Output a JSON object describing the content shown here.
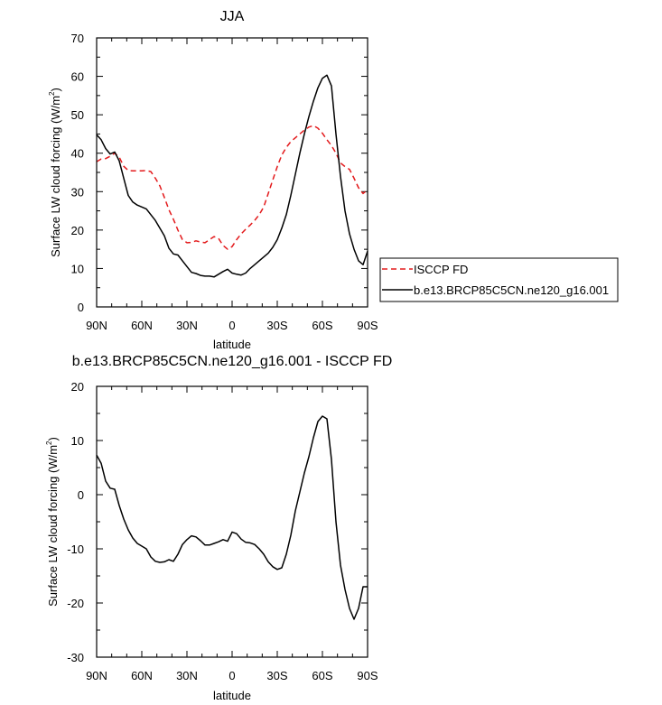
{
  "chart_data": [
    {
      "type": "line",
      "title": "JJA",
      "xlabel": "latitude",
      "ylabel": "Surface LW cloud forcing (W/m²)",
      "ylabel_main": "Surface LW cloud forcing (W/m",
      "ylabel_sup": "2",
      "ylabel_end": ")",
      "xlim": [
        -90,
        90
      ],
      "ylim": [
        0,
        70
      ],
      "xticks": [
        -90,
        -60,
        -30,
        0,
        30,
        60,
        90
      ],
      "xtick_labels": [
        "90N",
        "60N",
        "30N",
        "0",
        "30S",
        "60S",
        "90S"
      ],
      "yticks": [
        0,
        10,
        20,
        30,
        40,
        50,
        60,
        70
      ],
      "ytick_labels": [
        "0",
        "10",
        "20",
        "30",
        "40",
        "50",
        "60",
        "70"
      ],
      "grid": false,
      "legend_position": "right",
      "series": [
        {
          "name": "ISCCP FD",
          "color": "#e31a1c",
          "dash": "dashed",
          "x": [
            -90,
            -87,
            -84,
            -81,
            -78,
            -75,
            -72,
            -69,
            -66,
            -63,
            -60,
            -57,
            -54,
            -51,
            -48,
            -45,
            -42,
            -39,
            -36,
            -33,
            -30,
            -27,
            -24,
            -21,
            -18,
            -15,
            -12,
            -9,
            -6,
            -3,
            0,
            3,
            6,
            9,
            12,
            15,
            18,
            21,
            24,
            27,
            30,
            33,
            36,
            39,
            42,
            45,
            48,
            51,
            54,
            57,
            60,
            63,
            66,
            69,
            72,
            75,
            78,
            81,
            84,
            87,
            90
          ],
          "y": [
            37.8,
            38.5,
            38.6,
            39.2,
            40.0,
            39.0,
            36.6,
            35.5,
            35.4,
            35.4,
            35.4,
            35.5,
            35.2,
            33.5,
            31.5,
            28.5,
            25.3,
            22.8,
            20.0,
            17.5,
            16.7,
            16.8,
            17.2,
            16.9,
            16.7,
            17.5,
            18.3,
            17.8,
            16.0,
            15.0,
            15.7,
            17.5,
            19.0,
            20.2,
            21.3,
            22.5,
            24.0,
            26.0,
            29.5,
            33.0,
            36.5,
            39.5,
            41.5,
            43.0,
            44.0,
            45.0,
            46.0,
            46.8,
            47.2,
            46.5,
            45.2,
            43.5,
            42.0,
            40.0,
            37.5,
            36.5,
            35.8,
            33.5,
            31.0,
            29.5,
            30.5
          ]
        },
        {
          "name": "b.e13.BRCP85C5CN.ne120_g16.001",
          "color": "#000000",
          "dash": "solid",
          "x": [
            -90,
            -87,
            -84,
            -81,
            -78,
            -75,
            -72,
            -69,
            -66,
            -63,
            -60,
            -57,
            -54,
            -51,
            -48,
            -45,
            -42,
            -39,
            -36,
            -33,
            -30,
            -27,
            -24,
            -21,
            -18,
            -15,
            -12,
            -9,
            -6,
            -3,
            0,
            3,
            6,
            9,
            12,
            15,
            18,
            21,
            24,
            27,
            30,
            33,
            36,
            39,
            42,
            45,
            48,
            51,
            54,
            57,
            60,
            63,
            66,
            69,
            72,
            75,
            78,
            81,
            84,
            87,
            90
          ],
          "y": [
            44.8,
            43.5,
            41.2,
            39.8,
            40.3,
            38.0,
            33.5,
            29.0,
            27.3,
            26.5,
            26.0,
            25.5,
            24.0,
            22.5,
            20.5,
            18.5,
            15.3,
            13.8,
            13.5,
            12.0,
            10.5,
            9.0,
            8.7,
            8.2,
            8.0,
            8.0,
            7.8,
            8.5,
            9.2,
            9.8,
            8.8,
            8.5,
            8.3,
            8.8,
            10.0,
            11.0,
            12.0,
            13.0,
            14.0,
            15.5,
            17.5,
            20.5,
            24.0,
            29.0,
            34.5,
            40.0,
            45.0,
            49.5,
            53.5,
            57.0,
            59.5,
            60.3,
            57.5,
            45.0,
            34.0,
            25.0,
            19.0,
            15.0,
            12.0,
            11.0,
            14.5
          ]
        }
      ]
    },
    {
      "type": "line",
      "title": "b.e13.BRCP85C5CN.ne120_g16.001 - ISCCP FD",
      "xlabel": "latitude",
      "ylabel": "Surface LW cloud forcing (W/m²)",
      "ylabel_main": "Surface LW cloud forcing (W/m",
      "ylabel_sup": "2",
      "ylabel_end": ")",
      "xlim": [
        -90,
        90
      ],
      "ylim": [
        -30,
        20
      ],
      "xticks": [
        -90,
        -60,
        -30,
        0,
        30,
        60,
        90
      ],
      "xtick_labels": [
        "90N",
        "60N",
        "30N",
        "0",
        "30S",
        "60S",
        "90S"
      ],
      "yticks": [
        -30,
        -20,
        -10,
        0,
        10,
        20
      ],
      "ytick_labels": [
        "-30",
        "-20",
        "-10",
        "0",
        "10",
        "20"
      ],
      "grid": false,
      "series": [
        {
          "name": "b.e13.BRCP85C5CN.ne120_g16.001 - ISCCP FD",
          "color": "#000000",
          "dash": "solid",
          "x": [
            -90,
            -87,
            -84,
            -81,
            -78,
            -75,
            -72,
            -69,
            -66,
            -63,
            -60,
            -57,
            -54,
            -51,
            -48,
            -45,
            -42,
            -39,
            -36,
            -33,
            -30,
            -27,
            -24,
            -21,
            -18,
            -15,
            -12,
            -9,
            -6,
            -3,
            0,
            3,
            6,
            9,
            12,
            15,
            18,
            21,
            24,
            27,
            30,
            33,
            36,
            39,
            42,
            45,
            48,
            51,
            54,
            57,
            60,
            63,
            66,
            69,
            72,
            75,
            78,
            81,
            84,
            87,
            90
          ],
          "y": [
            7.3,
            5.8,
            2.5,
            1.2,
            1.0,
            -2.0,
            -4.5,
            -6.5,
            -8.0,
            -9.0,
            -9.5,
            -10.0,
            -11.5,
            -12.3,
            -12.5,
            -12.4,
            -12.0,
            -12.3,
            -11.0,
            -9.2,
            -8.3,
            -7.6,
            -7.8,
            -8.5,
            -9.3,
            -9.3,
            -9.0,
            -8.7,
            -8.3,
            -8.6,
            -6.9,
            -7.2,
            -8.2,
            -8.8,
            -8.9,
            -9.2,
            -10.0,
            -11.0,
            -12.4,
            -13.3,
            -13.8,
            -13.5,
            -11.0,
            -7.5,
            -3.0,
            0.5,
            4.0,
            7.0,
            10.5,
            13.5,
            14.5,
            14.0,
            6.5,
            -5.0,
            -13.0,
            -17.5,
            -21.0,
            -23.0,
            -21.0,
            -17.0,
            -17.0
          ]
        }
      ]
    }
  ]
}
